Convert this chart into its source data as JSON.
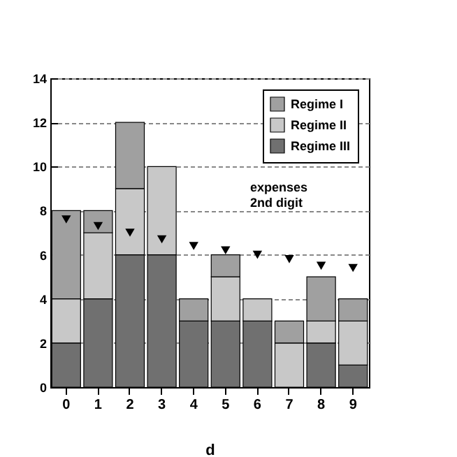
{
  "chart_data": {
    "type": "bar",
    "stacked": true,
    "xlabel": "d",
    "categories": [
      "0",
      "1",
      "2",
      "3",
      "4",
      "5",
      "6",
      "7",
      "8",
      "9"
    ],
    "series": [
      {
        "name": "Regime III",
        "color": "#707070",
        "values": [
          2,
          4,
          6,
          6,
          3,
          3,
          3,
          0,
          2,
          1
        ]
      },
      {
        "name": "Regime II",
        "color": "#c8c8c8",
        "values": [
          2,
          3,
          3,
          4,
          0,
          2,
          1,
          2,
          1,
          2
        ]
      },
      {
        "name": "Regime I",
        "color": "#a0a0a0",
        "values": [
          4,
          1,
          3,
          0,
          1,
          1,
          0,
          1,
          2,
          1
        ]
      },
      {
        "type": "scatter",
        "x": [
          "0",
          "1",
          "2",
          "3",
          "4",
          "5",
          "6",
          "7",
          "8",
          "9"
        ],
        "color": "#000000",
        "values": [
          7.6,
          7.3,
          7.0,
          6.7,
          6.4,
          6.2,
          6.0,
          5.8,
          5.5,
          5.4
        ]
      }
    ],
    "ylim": [
      0,
      14
    ],
    "yticks": [
      0,
      2,
      4,
      6,
      8,
      10,
      12,
      14
    ],
    "grid": "y",
    "legend": "top right",
    "marker": "triangle",
    "annotations": [
      "expenses\n2nd digit"
    ]
  }
}
